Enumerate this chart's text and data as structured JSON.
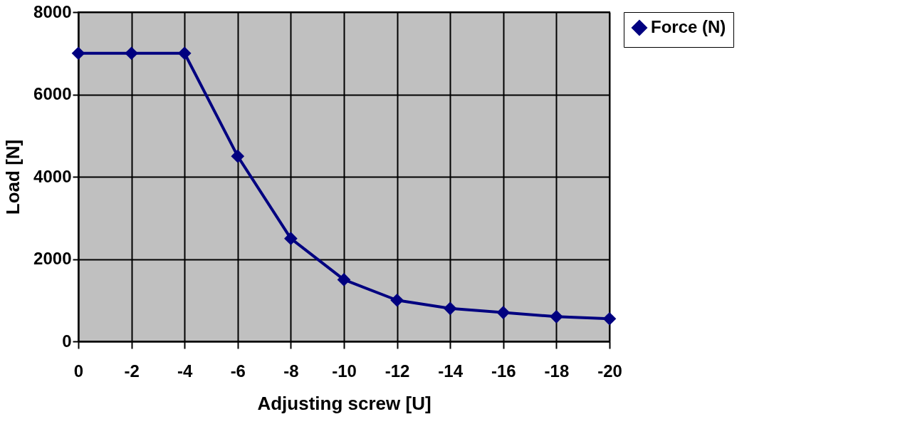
{
  "chart_data": {
    "type": "line",
    "xlabel": "Adjusting screw [U]",
    "ylabel": "Load [N]",
    "categories": [
      "0",
      "-2",
      "-4",
      "-6",
      "-8",
      "-10",
      "-12",
      "-14",
      "-16",
      "-18",
      "-20"
    ],
    "series": [
      {
        "name": "Force (N)",
        "color": "#000080",
        "values": [
          7000,
          7000,
          7000,
          4500,
          2500,
          1500,
          1000,
          800,
          700,
          600,
          550
        ]
      }
    ],
    "ylim": [
      0,
      8000
    ],
    "yticks": [
      0,
      2000,
      4000,
      6000,
      8000
    ],
    "grid": true,
    "legend": "right",
    "marker": "diamond",
    "line_style": "solid"
  }
}
